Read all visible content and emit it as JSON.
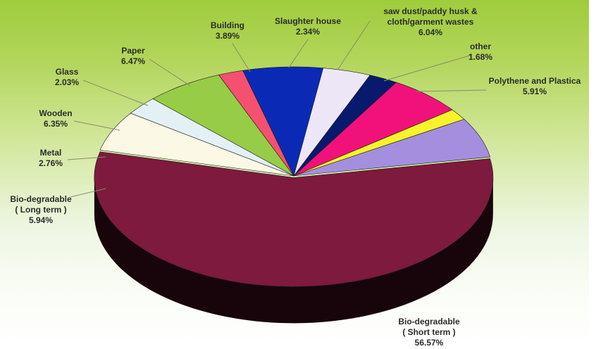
{
  "chart_data": {
    "type": "pie",
    "style": "3d-exploded-top",
    "slices": [
      {
        "name": "Bio-degradable ( Short term )",
        "label_lines": [
          "Bio-degradable",
          "( Short term )"
        ],
        "pct_label": "56.57%",
        "value": 56.57,
        "color": "#7d1a3d"
      },
      {
        "name": "Bio-degradable ( Long term )",
        "label_lines": [
          "Bio-degradable",
          "( Long term )"
        ],
        "pct_label": "5.94%",
        "value": 5.94,
        "color": "#fbf8e6"
      },
      {
        "name": "Metal",
        "label_lines": [
          "Metal"
        ],
        "pct_label": "2.76%",
        "value": 2.76,
        "color": "#e3f1f4"
      },
      {
        "name": "Wooden",
        "label_lines": [
          "Wooden"
        ],
        "pct_label": "6.35%",
        "value": 6.35,
        "color": "#97cc47"
      },
      {
        "name": "Glass",
        "label_lines": [
          "Glass"
        ],
        "pct_label": "2.03%",
        "value": 2.03,
        "color": "#f4506f"
      },
      {
        "name": "Paper",
        "label_lines": [
          "Paper"
        ],
        "pct_label": "6.47%",
        "value": 6.47,
        "color": "#0a2ab5"
      },
      {
        "name": "Building",
        "label_lines": [
          "Building"
        ],
        "pct_label": "3.89%",
        "value": 3.89,
        "color": "#ece6f6"
      },
      {
        "name": "Slaughter house",
        "label_lines": [
          "Slaughter house"
        ],
        "pct_label": "2.34%",
        "value": 2.34,
        "color": "#071a6e"
      },
      {
        "name": "saw dust/paddy husk & cloth/garment wastes",
        "label_lines": [
          "saw dust/paddy husk &",
          "cloth/garment wastes"
        ],
        "pct_label": "6.04%",
        "value": 6.04,
        "color": "#f0127a"
      },
      {
        "name": "other",
        "label_lines": [
          "other"
        ],
        "pct_label": "1.68%",
        "value": 1.68,
        "color": "#f8f22a"
      },
      {
        "name": "Polythene and Plastica",
        "label_lines": [
          "Polythene and Plastica"
        ],
        "pct_label": "5.91%",
        "value": 5.91,
        "color": "#a48fde"
      }
    ]
  }
}
